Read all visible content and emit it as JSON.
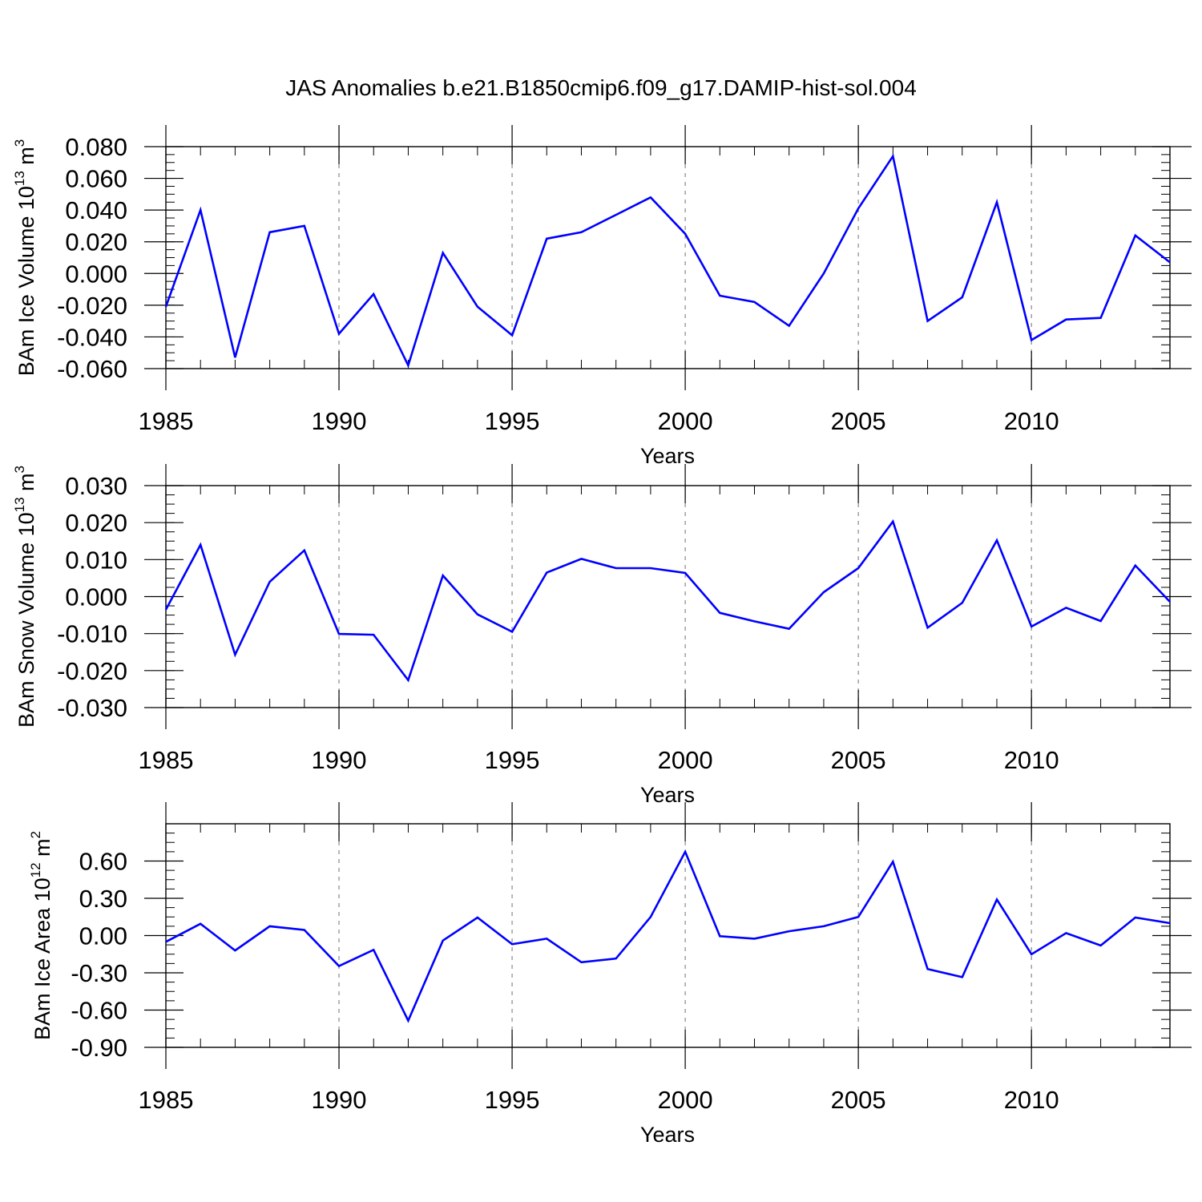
{
  "figure": {
    "title": "JAS Anomalies b.e21.B1850cmip6.f09_g17.DAMIP-hist-sol.004",
    "line_color": "#0000ff",
    "grid_color": "#888888"
  },
  "chart_data": [
    {
      "type": "line",
      "title": "JAS Anomalies b.e21.B1850cmip6.f09_g17.DAMIP-hist-sol.004",
      "xlabel": "Years",
      "ylabel": {
        "base": "BAm Ice Volume 10",
        "exp": "13",
        "unit": " m",
        "unit_exp": "3"
      },
      "xlim": [
        1985,
        2014
      ],
      "ylim": [
        -0.06,
        0.08
      ],
      "y_ticks": [
        -0.06,
        -0.04,
        -0.02,
        0.0,
        0.02,
        0.04,
        0.06,
        0.08
      ],
      "y_tick_labels": [
        "-0.060",
        "-0.040",
        "-0.020",
        "0.000",
        "0.020",
        "0.040",
        "0.060",
        "0.080"
      ],
      "y_minor_step": 0.005,
      "x_ticks": [
        1985,
        1990,
        1995,
        2000,
        2005,
        2010
      ],
      "x_tick_labels": [
        "1985",
        "1990",
        "1995",
        "2000",
        "2005",
        "2010"
      ],
      "grid_x": [
        1990,
        1995,
        2000,
        2005,
        2010
      ],
      "x": [
        1985,
        1986,
        1987,
        1988,
        1989,
        1990,
        1991,
        1992,
        1993,
        1994,
        1995,
        1996,
        1997,
        1998,
        1999,
        2000,
        2001,
        2002,
        2003,
        2004,
        2005,
        2006,
        2007,
        2008,
        2009,
        2010,
        2011,
        2012,
        2013,
        2014
      ],
      "series": [
        {
          "name": "BAm Ice Volume",
          "values": [
            -0.021,
            0.04,
            -0.053,
            0.026,
            0.03,
            -0.038,
            -0.013,
            -0.058,
            0.013,
            -0.021,
            -0.039,
            0.022,
            0.026,
            0.037,
            0.048,
            0.025,
            -0.014,
            -0.018,
            -0.033,
            0.0,
            0.041,
            0.074,
            -0.03,
            -0.015,
            0.045,
            -0.042,
            -0.029,
            -0.028,
            0.024,
            0.007
          ]
        }
      ]
    },
    {
      "type": "line",
      "xlabel": "Years",
      "ylabel": {
        "base": "BAm Snow Volume 10",
        "exp": "13",
        "unit": " m",
        "unit_exp": "3"
      },
      "xlim": [
        1985,
        2014
      ],
      "ylim": [
        -0.03,
        0.03
      ],
      "y_ticks": [
        -0.03,
        -0.02,
        -0.01,
        0.0,
        0.01,
        0.02,
        0.03
      ],
      "y_tick_labels": [
        "-0.030",
        "-0.020",
        "-0.010",
        "0.000",
        "0.010",
        "0.020",
        "0.030"
      ],
      "y_minor_step": 0.0025,
      "x_ticks": [
        1985,
        1990,
        1995,
        2000,
        2005,
        2010
      ],
      "x_tick_labels": [
        "1985",
        "1990",
        "1995",
        "2000",
        "2005",
        "2010"
      ],
      "grid_x": [
        1990,
        1995,
        2000,
        2005,
        2010
      ],
      "x": [
        1985,
        1986,
        1987,
        1988,
        1989,
        1990,
        1991,
        1992,
        1993,
        1994,
        1995,
        1996,
        1997,
        1998,
        1999,
        2000,
        2001,
        2002,
        2003,
        2004,
        2005,
        2006,
        2007,
        2008,
        2009,
        2010,
        2011,
        2012,
        2013,
        2014
      ],
      "series": [
        {
          "name": "BAm Snow Volume",
          "values": [
            -0.0035,
            0.014,
            -0.0157,
            0.004,
            0.0125,
            -0.0101,
            -0.0103,
            -0.0226,
            0.0057,
            -0.0048,
            -0.0095,
            0.0065,
            0.0102,
            0.0077,
            0.0077,
            0.0064,
            -0.0044,
            -0.0067,
            -0.0087,
            0.0012,
            0.0077,
            0.0203,
            -0.0084,
            -0.0017,
            0.0152,
            -0.0081,
            -0.003,
            -0.0066,
            0.0084,
            -0.0014
          ]
        }
      ]
    },
    {
      "type": "line",
      "xlabel": "Years",
      "ylabel": {
        "base": "BAm Ice Area 10",
        "exp": "12",
        "unit": " m",
        "unit_exp": "2"
      },
      "xlim": [
        1985,
        2014
      ],
      "ylim": [
        -0.9,
        0.9
      ],
      "y_ticks": [
        -0.9,
        -0.6,
        -0.3,
        0.0,
        0.3,
        0.6
      ],
      "y_tick_labels": [
        "-0.90",
        "-0.60",
        "-0.30",
        "0.00",
        "0.30",
        "0.60"
      ],
      "y_minor_step": 0.075,
      "x_ticks": [
        1985,
        1990,
        1995,
        2000,
        2005,
        2010
      ],
      "x_tick_labels": [
        "1985",
        "1990",
        "1995",
        "2000",
        "2005",
        "2010"
      ],
      "grid_x": [
        1990,
        1995,
        2000,
        2005,
        2010
      ],
      "x": [
        1985,
        1986,
        1987,
        1988,
        1989,
        1990,
        1991,
        1992,
        1993,
        1994,
        1995,
        1996,
        1997,
        1998,
        1999,
        2000,
        2001,
        2002,
        2003,
        2004,
        2005,
        2006,
        2007,
        2008,
        2009,
        2010,
        2011,
        2012,
        2013,
        2014
      ],
      "series": [
        {
          "name": "BAm Ice Area",
          "values": [
            -0.05,
            0.095,
            -0.12,
            0.075,
            0.045,
            -0.245,
            -0.115,
            -0.685,
            -0.04,
            0.145,
            -0.07,
            -0.025,
            -0.215,
            -0.185,
            0.15,
            0.675,
            -0.005,
            -0.025,
            0.035,
            0.075,
            0.15,
            0.595,
            -0.27,
            -0.335,
            0.29,
            -0.15,
            0.02,
            -0.08,
            0.145,
            0.1
          ]
        }
      ]
    }
  ]
}
